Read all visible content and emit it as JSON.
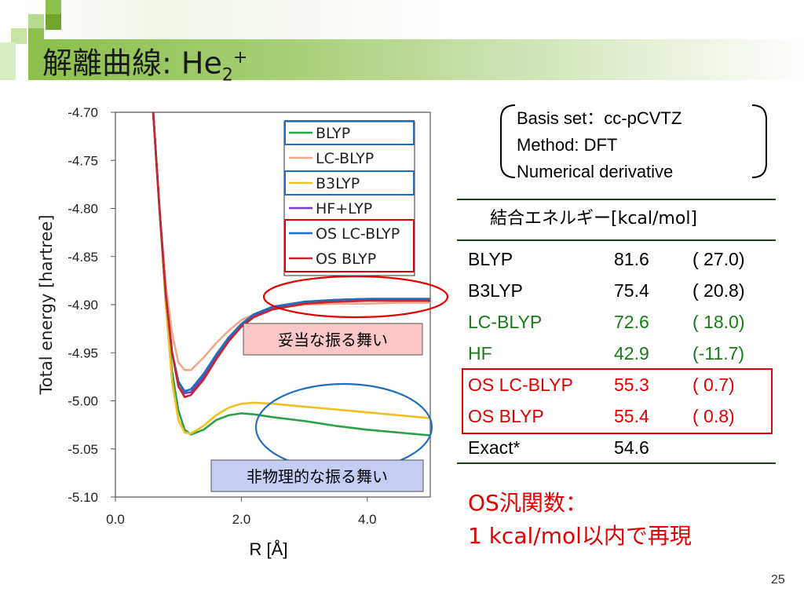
{
  "slide": {
    "title_main": "解離曲線: He",
    "title_sub": "2",
    "title_sup": "+",
    "page_number": "25"
  },
  "info": {
    "lines": [
      "Basis set：cc-pCVTZ",
      "Method: DFT",
      "Numerical derivative"
    ]
  },
  "table": {
    "header": "結合エネルギー[kcal/mol]",
    "rows": [
      {
        "name": "BLYP",
        "value": "81.6",
        "diff": "( 27.0)",
        "color": "#000000"
      },
      {
        "name": "B3LYP",
        "value": "75.4",
        "diff": "( 20.8)",
        "color": "#000000"
      },
      {
        "name": "LC-BLYP",
        "value": "72.6",
        "diff": "( 18.0)",
        "color": "#1a7a1a"
      },
      {
        "name": "HF",
        "value": "42.9",
        "diff": "(-11.7)",
        "color": "#1a7a1a"
      },
      {
        "name": "OS LC-BLYP",
        "value": "55.3",
        "diff": "( 0.7)",
        "color": "#e30000"
      },
      {
        "name": "OS BLYP",
        "value": "55.4",
        "diff": "( 0.8)",
        "color": "#e30000"
      },
      {
        "name": "Exact*",
        "value": "54.6",
        "diff": "",
        "color": "#000000"
      }
    ]
  },
  "conclusion": {
    "line1": "OS汎関数：",
    "line2": "1 kcal/mol以内で再現"
  },
  "callouts": {
    "good": "妥当な振る舞い",
    "bad": "非物理的な振る舞い"
  },
  "colors": {
    "title_green": "#8cbf4c",
    "highlight_red": "#e30000",
    "highlight_blue": "#1f6fbf",
    "good_box_bg": "#fbc7c7",
    "bad_box_bg": "#c5cdf5"
  },
  "chart_data": {
    "type": "line",
    "title": "",
    "xlabel": "R [Å]",
    "ylabel": "Total energy [hartree]",
    "xlim": [
      0,
      5
    ],
    "ylim": [
      -5.1,
      -4.7
    ],
    "xticks": [
      "0.0",
      "2.0",
      "4.0"
    ],
    "xtick_values": [
      0,
      2,
      4
    ],
    "yticks": [
      "-4.70",
      "-4.75",
      "-4.80",
      "-4.85",
      "-4.90",
      "-4.95",
      "-5.00",
      "-5.05",
      "-5.10"
    ],
    "ytick_values": [
      -4.7,
      -4.75,
      -4.8,
      -4.85,
      -4.9,
      -4.95,
      -5.0,
      -5.05,
      -5.1
    ],
    "grid": false,
    "legend_position": "top-right",
    "series": [
      {
        "name": "BLYP",
        "color": "#2ea04a",
        "x": [
          0.6,
          0.7,
          0.8,
          0.9,
          1.0,
          1.1,
          1.2,
          1.4,
          1.6,
          1.8,
          2.0,
          2.2,
          2.5,
          3.0,
          3.5,
          4.0,
          4.5,
          5.0
        ],
        "y": [
          -4.7,
          -4.8,
          -4.9,
          -4.97,
          -5.01,
          -5.03,
          -5.035,
          -5.03,
          -5.02,
          -5.015,
          -5.013,
          -5.014,
          -5.017,
          -5.021,
          -5.026,
          -5.03,
          -5.033,
          -5.036
        ]
      },
      {
        "name": "LC-BLYP",
        "color": "#f0a888",
        "x": [
          0.6,
          0.7,
          0.8,
          0.9,
          1.0,
          1.1,
          1.2,
          1.4,
          1.6,
          1.8,
          2.0,
          2.2,
          2.5,
          3.0,
          3.5,
          4.0,
          4.5,
          5.0
        ],
        "y": [
          -4.7,
          -4.8,
          -4.88,
          -4.93,
          -4.96,
          -4.968,
          -4.968,
          -4.955,
          -4.94,
          -4.927,
          -4.916,
          -4.91,
          -4.904,
          -4.9,
          -4.899,
          -4.899,
          -4.898,
          -4.898
        ]
      },
      {
        "name": "B3LYP",
        "color": "#f0c020",
        "x": [
          0.6,
          0.7,
          0.8,
          0.9,
          1.0,
          1.1,
          1.2,
          1.4,
          1.6,
          1.8,
          2.0,
          2.2,
          2.5,
          3.0,
          3.5,
          4.0,
          4.5,
          5.0
        ],
        "y": [
          -4.7,
          -4.8,
          -4.9,
          -4.98,
          -5.02,
          -5.033,
          -5.034,
          -5.026,
          -5.015,
          -5.007,
          -5.003,
          -5.002,
          -5.003,
          -5.006,
          -5.009,
          -5.012,
          -5.015,
          -5.018
        ]
      },
      {
        "name": "HF+LYP",
        "color": "#7a3fb8",
        "x": [
          0.6,
          0.7,
          0.8,
          0.9,
          1.0,
          1.1,
          1.2,
          1.4,
          1.6,
          1.8,
          2.0,
          2.2,
          2.5,
          3.0,
          3.5,
          4.0,
          4.5,
          5.0
        ],
        "y": [
          -4.7,
          -4.8,
          -4.89,
          -4.95,
          -4.98,
          -4.992,
          -4.991,
          -4.975,
          -4.955,
          -4.937,
          -4.922,
          -4.912,
          -4.903,
          -4.897,
          -4.895,
          -4.894,
          -4.894,
          -4.894
        ]
      },
      {
        "name": "OS LC-BLYP",
        "color": "#1f6fbf",
        "x": [
          0.6,
          0.7,
          0.8,
          0.9,
          1.0,
          1.1,
          1.2,
          1.4,
          1.6,
          1.8,
          2.0,
          2.2,
          2.5,
          3.0,
          3.5,
          4.0,
          4.5,
          5.0
        ],
        "y": [
          -4.7,
          -4.8,
          -4.89,
          -4.95,
          -4.98,
          -4.99,
          -4.988,
          -4.972,
          -4.952,
          -4.934,
          -4.92,
          -4.91,
          -4.902,
          -4.897,
          -4.895,
          -4.894,
          -4.894,
          -4.894
        ]
      },
      {
        "name": "OS BLYP",
        "color": "#c8242e",
        "x": [
          0.6,
          0.7,
          0.8,
          0.9,
          1.0,
          1.1,
          1.2,
          1.4,
          1.6,
          1.8,
          2.0,
          2.2,
          2.5,
          3.0,
          3.5,
          4.0,
          4.5,
          5.0
        ],
        "y": [
          -4.7,
          -4.8,
          -4.89,
          -4.95,
          -4.985,
          -4.996,
          -4.994,
          -4.978,
          -4.957,
          -4.938,
          -4.923,
          -4.913,
          -4.905,
          -4.899,
          -4.897,
          -4.896,
          -4.896,
          -4.896
        ]
      }
    ]
  }
}
